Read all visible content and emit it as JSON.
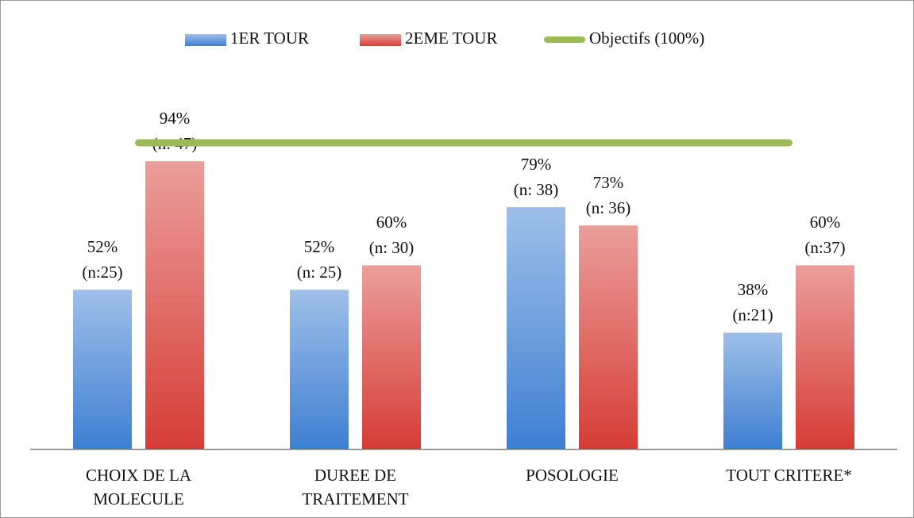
{
  "chart_data": {
    "type": "bar",
    "categories": [
      "CHOIX DE LA\nMOLECULE",
      "DUREE DE\nTRAITEMENT",
      "POSOLOGIE",
      "TOUT CRITERE*"
    ],
    "ylim": [
      0,
      100
    ],
    "series": [
      {
        "name": "1ER TOUR",
        "color": "#3f7fd2",
        "values": [
          52,
          52,
          79,
          38
        ],
        "value_labels": [
          [
            "52%",
            "(n:25)"
          ],
          [
            "52%",
            "(n: 25)"
          ],
          [
            "79%",
            "(n: 38)"
          ],
          [
            "38%",
            "(n:21)"
          ]
        ]
      },
      {
        "name": "2EME TOUR",
        "color": "#d63c37",
        "values": [
          94,
          60,
          73,
          60
        ],
        "value_labels": [
          [
            "94%",
            "(n: 47)"
          ],
          [
            "60%",
            "(n: 30)"
          ],
          [
            "73%",
            "(n: 36)"
          ],
          [
            "60%",
            "(n:37)"
          ]
        ]
      },
      {
        "name": "Objectifs (100%)",
        "type": "line",
        "color": "#9bbb59",
        "values": [
          100,
          100,
          100,
          100
        ]
      }
    ]
  }
}
